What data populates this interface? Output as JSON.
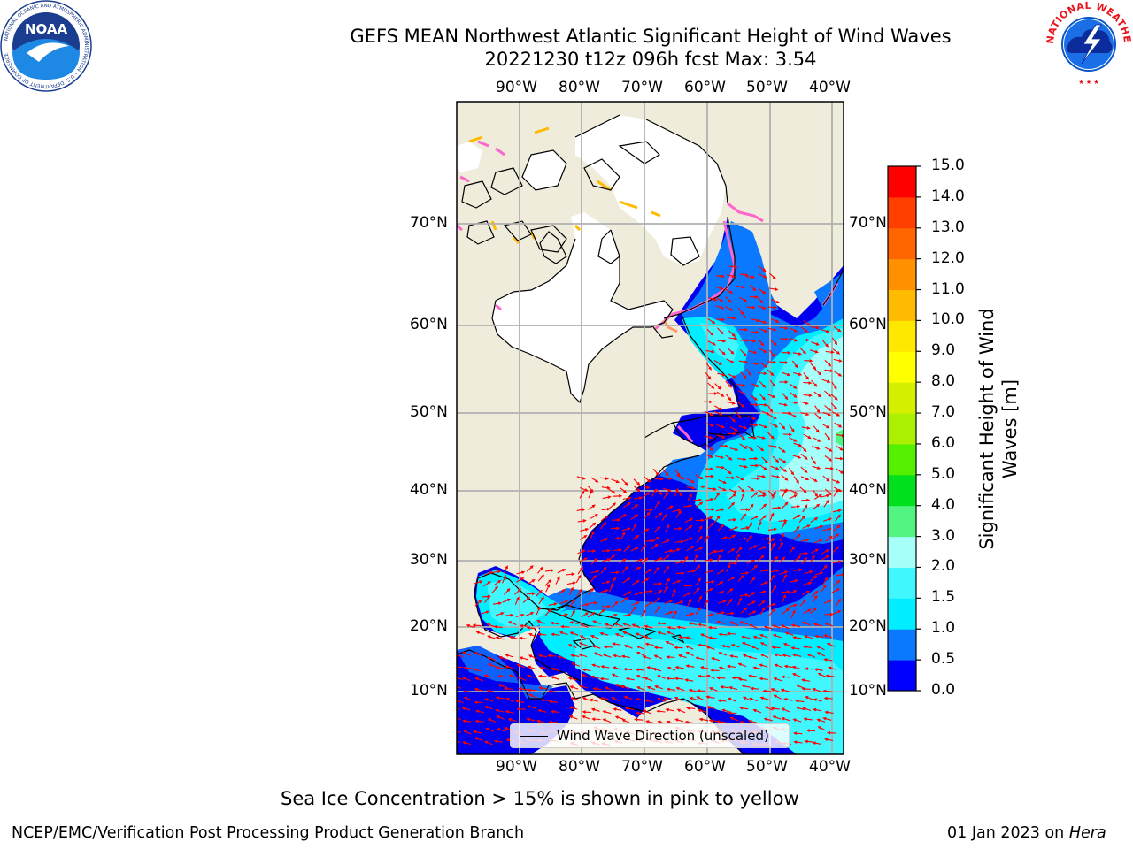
{
  "title": {
    "line1": "GEFS MEAN Northwest Atlantic Significant Height of Wind Waves",
    "line2": "20221230 t12z 096h fcst   Max: 3.54"
  },
  "map": {
    "lon_labels": [
      "90°W",
      "80°W",
      "70°W",
      "60°W",
      "50°W",
      "40°W"
    ],
    "lat_labels": [
      "70°N",
      "60°N",
      "50°N",
      "40°N",
      "30°N",
      "20°N",
      "10°N"
    ],
    "legend_label": "Wind Wave Direction (unscaled)",
    "colors": {
      "land": "#efecdc",
      "ice_free": "#ffffff",
      "grid": "#b0b0b0",
      "arrow": "#ff0000",
      "coast": "#000000"
    }
  },
  "colorbar": {
    "label": "Significant Height of Wind Waves [m]",
    "ticks": [
      "0.0",
      "0.5",
      "1.0",
      "1.5",
      "2.0",
      "3.0",
      "4.0",
      "5.0",
      "6.0",
      "7.0",
      "8.0",
      "9.0",
      "10.0",
      "11.0",
      "12.0",
      "13.0",
      "14.0",
      "15.0"
    ],
    "colors": [
      "#0000ff",
      "#0a78ff",
      "#00eeff",
      "#40f6ff",
      "#a6fff8",
      "#52f582",
      "#00e01c",
      "#55f000",
      "#aaf000",
      "#d4f000",
      "#ffff00",
      "#ffe800",
      "#ffbb00",
      "#ff9000",
      "#ff6600",
      "#ff3e00",
      "#ff0000"
    ]
  },
  "logos": {
    "noaa_text": "NOAA",
    "noaa_ring": "NATIONAL OCEANIC AND ATMOSPHERIC ADMINISTRATION • U.S. DEPARTMENT OF COMMERCE",
    "nws_ring": "NATIONAL WEATHER SERVICE"
  },
  "note": "Sea Ice Concentration > 15% is shown in pink to yellow",
  "footer": {
    "left": "NCEP/EMC/Verification Post Processing Product Generation Branch",
    "right_prefix": "01 Jan 2023 on ",
    "right_host": "Hera"
  }
}
